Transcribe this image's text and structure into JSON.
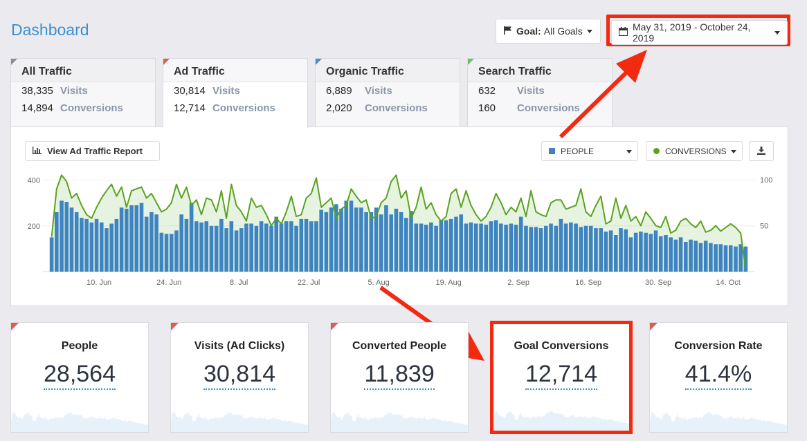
{
  "page": {
    "title": "Dashboard"
  },
  "header": {
    "goal_label": "Goal:",
    "goal_value": "All Goals",
    "date_range": "May 31, 2019 - October 24, 2019"
  },
  "tabs": [
    {
      "name": "All Traffic",
      "visits": "38,335",
      "visits_label": "Visits",
      "conversions": "14,894",
      "conversions_label": "Conversions",
      "color": "#8a8f99"
    },
    {
      "name": "Ad Traffic",
      "visits": "30,814",
      "visits_label": "Visits",
      "conversions": "12,714",
      "conversions_label": "Conversions",
      "color": "#e05a57"
    },
    {
      "name": "Organic Traffic",
      "visits": "6,889",
      "visits_label": "Visits",
      "conversions": "2,020",
      "conversions_label": "Conversions",
      "color": "#3d8fd4"
    },
    {
      "name": "Search Traffic",
      "visits": "632",
      "visits_label": "Visits",
      "conversions": "160",
      "conversions_label": "Conversions",
      "color": "#6cc06b"
    }
  ],
  "panel": {
    "report_button": "View Ad Traffic Report",
    "people_select": "PEOPLE",
    "conversions_select": "CONVERSIONS"
  },
  "chart_data": {
    "type": "bar",
    "x_ticks": [
      "10. Jun",
      "24. Jun",
      "8. Jul",
      "22. Jul",
      "5. Aug",
      "19. Aug",
      "2. Sep",
      "16. Sep",
      "30. Sep",
      "14. Oct"
    ],
    "y_left_ticks": [
      "200",
      "400"
    ],
    "y_right_ticks": [
      "50",
      "100"
    ],
    "ylim_left": [
      0,
      450
    ],
    "ylim_right": [
      0,
      112
    ],
    "series": [
      {
        "axis": "left",
        "type": "bar",
        "color": "#3e84c1",
        "values": [
          150,
          260,
          310,
          305,
          280,
          260,
          235,
          230,
          215,
          230,
          215,
          190,
          210,
          230,
          280,
          275,
          290,
          290,
          300,
          240,
          260,
          250,
          170,
          165,
          165,
          180,
          250,
          230,
          300,
          220,
          215,
          220,
          200,
          200,
          230,
          190,
          220,
          180,
          190,
          210,
          210,
          200,
          220,
          210,
          200,
          240,
          210,
          220,
          220,
          200,
          230,
          230,
          220,
          220,
          270,
          260,
          280,
          295,
          275,
          310,
          310,
          280,
          280,
          260,
          260,
          280,
          250,
          290,
          250,
          275,
          260,
          235,
          265,
          210,
          210,
          205,
          215,
          200,
          225,
          225,
          230,
          240,
          250,
          210,
          215,
          210,
          210,
          205,
          220,
          225,
          210,
          205,
          210,
          205,
          240,
          200,
          195,
          195,
          190,
          200,
          210,
          200,
          230,
          210,
          215,
          210,
          195,
          200,
          200,
          190,
          190,
          175,
          180,
          160,
          190,
          185,
          150,
          170,
          175,
          170,
          165,
          180,
          155,
          160,
          150,
          140,
          150,
          130,
          140,
          135,
          125,
          135,
          125,
          120,
          120,
          115,
          115,
          110,
          120,
          110
        ]
      },
      {
        "axis": "right",
        "type": "line",
        "color": "#5aa21f",
        "values": [
          38,
          90,
          105,
          98,
          80,
          85,
          72,
          62,
          58,
          70,
          80,
          88,
          95,
          82,
          92,
          70,
          88,
          90,
          92,
          80,
          85,
          75,
          65,
          68,
          75,
          95,
          80,
          92,
          72,
          78,
          62,
          80,
          78,
          65,
          88,
          58,
          95,
          72,
          65,
          55,
          80,
          70,
          72,
          62,
          50,
          58,
          52,
          65,
          82,
          60,
          62,
          80,
          85,
          102,
          70,
          75,
          80,
          58,
          68,
          72,
          90,
          82,
          75,
          78,
          58,
          60,
          75,
          80,
          98,
          105,
          80,
          88,
          58,
          70,
          92,
          68,
          75,
          62,
          55,
          60,
          85,
          90,
          70,
          88,
          72,
          62,
          55,
          60,
          70,
          85,
          75,
          62,
          70,
          65,
          80,
          60,
          88,
          65,
          62,
          60,
          75,
          78,
          78,
          68,
          70,
          72,
          90,
          65,
          60,
          72,
          82,
          52,
          55,
          80,
          58,
          72,
          55,
          60,
          50,
          65,
          58,
          50,
          48,
          60,
          42,
          45,
          55,
          58,
          52,
          48,
          55,
          43,
          45,
          50,
          44,
          48,
          52,
          48,
          42,
          2
        ]
      }
    ]
  },
  "cards": [
    {
      "title": "People",
      "value": "28,564"
    },
    {
      "title": "Visits (Ad Clicks)",
      "value": "30,814"
    },
    {
      "title": "Converted People",
      "value": "11,839"
    },
    {
      "title": "Goal Conversions",
      "value": "12,714"
    },
    {
      "title": "Conversion Rate",
      "value": "41.4%"
    }
  ]
}
